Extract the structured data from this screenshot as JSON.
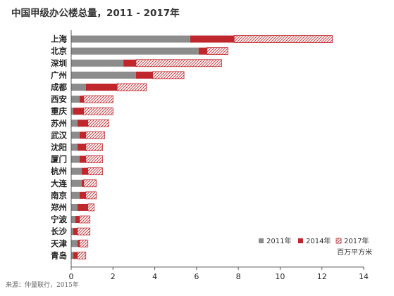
{
  "title": "中国甲级办公楼总量，2011 - 2017年",
  "source": "来源：仲量联行，2015年",
  "chart_data": {
    "type": "bar",
    "orientation": "horizontal",
    "stacked": true,
    "title": "中国甲级办公楼总量，2011 - 2017年",
    "unit": "百万平方米",
    "categories": [
      "上海",
      "北京",
      "深圳",
      "广州",
      "成都",
      "西安",
      "重庆",
      "苏州",
      "武汉",
      "沈阳",
      "厦门",
      "杭州",
      "大连",
      "南京",
      "郑州",
      "宁波",
      "长沙",
      "天津",
      "青岛"
    ],
    "series": [
      {
        "name": "2011年",
        "color": "#8c8c8c",
        "pattern": "solid",
        "values": [
          5.7,
          6.1,
          2.5,
          3.1,
          0.7,
          0.4,
          0.1,
          0.3,
          0.4,
          0.3,
          0.4,
          0.5,
          0.5,
          0.4,
          0.3,
          0.2,
          0.1,
          0.3,
          0.1
        ]
      },
      {
        "name": "2014年",
        "color": "#c0272d",
        "pattern": "solid",
        "values": [
          2.1,
          0.4,
          0.6,
          0.8,
          1.5,
          0.2,
          0.5,
          0.5,
          0.3,
          0.4,
          0.3,
          0.3,
          0.1,
          0.3,
          0.5,
          0.2,
          0.2,
          0.1,
          0.2
        ]
      },
      {
        "name": "2017年",
        "color": "#c0272d",
        "pattern": "hatched",
        "values": [
          4.7,
          1.0,
          4.1,
          1.5,
          1.4,
          1.4,
          1.4,
          1.0,
          0.9,
          0.8,
          0.8,
          0.7,
          0.6,
          0.5,
          0.3,
          0.5,
          0.6,
          0.4,
          0.4
        ]
      }
    ],
    "xlim": [
      0,
      14
    ],
    "xticks": [
      0,
      2,
      4,
      6,
      8,
      10,
      12,
      14
    ],
    "grid": false,
    "legend_position": "bottom-right"
  }
}
